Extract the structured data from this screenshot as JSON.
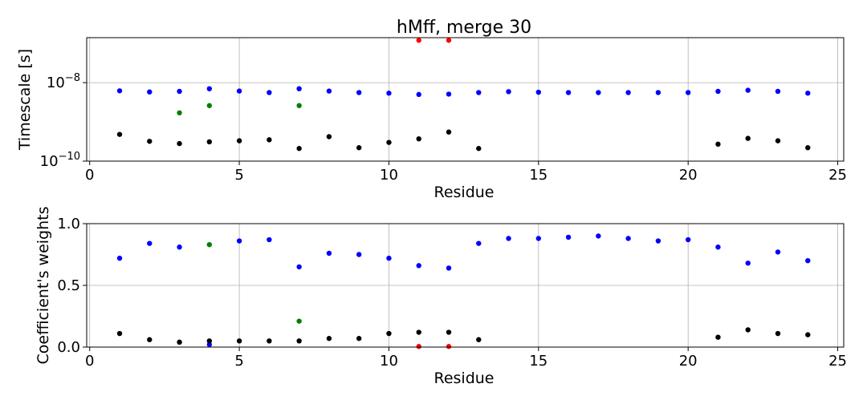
{
  "chart_data": [
    {
      "type": "scatter",
      "title": "hMff, merge 30",
      "xlabel": "Residue",
      "ylabel": "Timescale [s]",
      "yscale": "log",
      "xlim": [
        -0.1,
        25.2
      ],
      "ylim": [
        1e-10,
        1.4e-07
      ],
      "grid": true,
      "x_ticks": [
        0,
        5,
        10,
        15,
        20,
        25
      ],
      "x_tick_labels": [
        "0",
        "5",
        "10",
        "15",
        "20",
        "25"
      ],
      "y_ticks": [
        1e-10,
        1e-08
      ],
      "y_tick_labels": [
        {
          "base": "10",
          "exp": "−10"
        },
        {
          "base": "10",
          "exp": "−8"
        }
      ],
      "series": [
        {
          "color": "#0000ff",
          "points": [
            [
              1,
              6.2e-09
            ],
            [
              2,
              5.8e-09
            ],
            [
              3,
              6e-09
            ],
            [
              4,
              7e-09
            ],
            [
              5,
              6.1e-09
            ],
            [
              6,
              5.6e-09
            ],
            [
              7,
              7e-09
            ],
            [
              8,
              6.1e-09
            ],
            [
              9,
              5.6e-09
            ],
            [
              10,
              5.4e-09
            ],
            [
              11,
              5e-09
            ],
            [
              12,
              5.1e-09
            ],
            [
              13,
              5.6e-09
            ],
            [
              14,
              5.9e-09
            ],
            [
              15,
              5.7e-09
            ],
            [
              16,
              5.6e-09
            ],
            [
              17,
              5.6e-09
            ],
            [
              18,
              5.6e-09
            ],
            [
              19,
              5.6e-09
            ],
            [
              20,
              5.6e-09
            ],
            [
              21,
              6e-09
            ],
            [
              22,
              6.4e-09
            ],
            [
              23,
              6e-09
            ],
            [
              24,
              5.4e-09
            ]
          ]
        },
        {
          "color": "#008000",
          "points": [
            [
              3,
              1.7e-09
            ],
            [
              4,
              2.6e-09
            ],
            [
              7,
              2.6e-09
            ]
          ]
        },
        {
          "color": "#000000",
          "points": [
            [
              1,
              4.8e-10
            ],
            [
              2,
              3.2e-10
            ],
            [
              3,
              2.8e-10
            ],
            [
              4,
              3.1e-10
            ],
            [
              5,
              3.3e-10
            ],
            [
              6,
              3.5e-10
            ],
            [
              7,
              2.1e-10
            ],
            [
              8,
              4.2e-10
            ],
            [
              9,
              2.2e-10
            ],
            [
              10,
              3e-10
            ],
            [
              11,
              3.7e-10
            ],
            [
              12,
              5.5e-10
            ],
            [
              13,
              2.1e-10
            ],
            [
              21,
              2.7e-10
            ],
            [
              22,
              3.8e-10
            ],
            [
              23,
              3.3e-10
            ],
            [
              24,
              2.2e-10
            ]
          ]
        },
        {
          "color": "#ff0000",
          "points": [
            [
              11,
              1.2e-07
            ],
            [
              12,
              1.2e-07
            ]
          ]
        }
      ]
    },
    {
      "type": "scatter",
      "title": "",
      "xlabel": "Residue",
      "ylabel": "Coefficient's weights",
      "yscale": "linear",
      "xlim": [
        -0.1,
        25.2
      ],
      "ylim": [
        0,
        1
      ],
      "grid": true,
      "x_ticks": [
        0,
        5,
        10,
        15,
        20,
        25
      ],
      "x_tick_labels": [
        "0",
        "5",
        "10",
        "15",
        "20",
        "25"
      ],
      "y_ticks": [
        0,
        0.5,
        1.0
      ],
      "y_tick_labels": [
        "0.0",
        "0.5",
        "1.0"
      ],
      "series": [
        {
          "color": "#0000ff",
          "points": [
            [
              1,
              0.72
            ],
            [
              2,
              0.84
            ],
            [
              3,
              0.81
            ],
            [
              4,
              0.02
            ],
            [
              5,
              0.86
            ],
            [
              6,
              0.87
            ],
            [
              7,
              0.65
            ],
            [
              8,
              0.76
            ],
            [
              9,
              0.75
            ],
            [
              10,
              0.72
            ],
            [
              11,
              0.66
            ],
            [
              12,
              0.64
            ],
            [
              13,
              0.84
            ],
            [
              14,
              0.88
            ],
            [
              15,
              0.88
            ],
            [
              16,
              0.89
            ],
            [
              17,
              0.9
            ],
            [
              18,
              0.88
            ],
            [
              19,
              0.86
            ],
            [
              20,
              0.87
            ],
            [
              21,
              0.81
            ],
            [
              22,
              0.68
            ],
            [
              23,
              0.77
            ],
            [
              24,
              0.7
            ]
          ]
        },
        {
          "color": "#008000",
          "points": [
            [
              3,
              0.04
            ],
            [
              4,
              0.83
            ],
            [
              7,
              0.21
            ]
          ]
        },
        {
          "color": "#000000",
          "points": [
            [
              1,
              0.11
            ],
            [
              2,
              0.06
            ],
            [
              3,
              0.04
            ],
            [
              4,
              0.05
            ],
            [
              5,
              0.05
            ],
            [
              6,
              0.05
            ],
            [
              7,
              0.05
            ],
            [
              8,
              0.07
            ],
            [
              9,
              0.07
            ],
            [
              10,
              0.11
            ],
            [
              11,
              0.12
            ],
            [
              12,
              0.12
            ],
            [
              13,
              0.06
            ],
            [
              21,
              0.08
            ],
            [
              22,
              0.14
            ],
            [
              23,
              0.11
            ],
            [
              24,
              0.1
            ]
          ]
        },
        {
          "color": "#ff0000",
          "points": [
            [
              11,
              0.005
            ],
            [
              12,
              0.005
            ]
          ]
        }
      ]
    }
  ]
}
